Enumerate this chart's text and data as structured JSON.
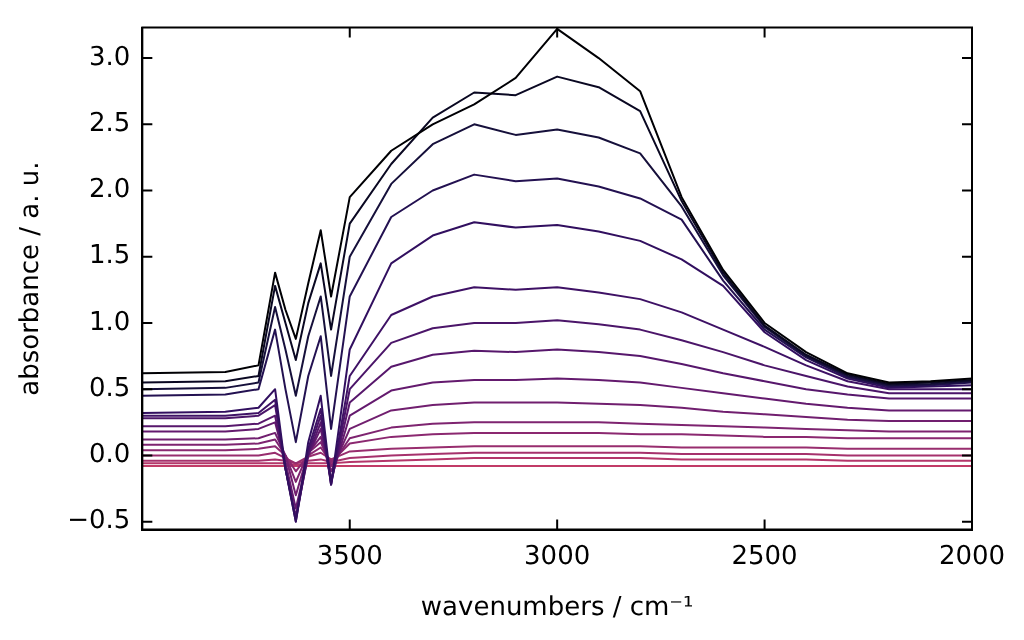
{
  "chart_data": {
    "type": "line",
    "xlabel": "wavenumbers / cm⁻¹",
    "ylabel": "absorbance / a. u.",
    "x": [
      4000,
      3800,
      3720,
      3680,
      3655,
      3630,
      3600,
      3570,
      3545,
      3500,
      3400,
      3300,
      3200,
      3100,
      3000,
      2900,
      2800,
      2700,
      2600,
      2500,
      2400,
      2300,
      2200,
      2100,
      2000
    ],
    "xlim": [
      4000,
      2000
    ],
    "xticks": [
      3500,
      3000,
      2500,
      2000
    ],
    "ylim": [
      -0.56,
      3.23
    ],
    "yticks": [
      {
        "value": -0.5,
        "label": "−0.5"
      },
      {
        "value": 0,
        "label": "0.0"
      },
      0.5,
      {
        "value": 1,
        "label": "1.0"
      },
      1.5,
      {
        "value": 2,
        "label": "2.0"
      },
      2.5,
      {
        "value": 3,
        "label": "3.0"
      }
    ],
    "grid": false,
    "legend": false,
    "marker": "none",
    "line_style": "solid",
    "series": [
      {
        "color": "#000004",
        "values": [
          0.62,
          0.63,
          0.68,
          1.38,
          1.1,
          0.88,
          1.3,
          1.7,
          1.2,
          1.95,
          2.3,
          2.5,
          2.65,
          2.85,
          3.22,
          3.0,
          2.75,
          1.95,
          1.4,
          1.0,
          0.78,
          0.62,
          0.55,
          0.56,
          0.58
        ]
      },
      {
        "color": "#0a0822",
        "values": [
          0.55,
          0.56,
          0.6,
          1.28,
          1.0,
          0.72,
          1.15,
          1.45,
          0.95,
          1.75,
          2.2,
          2.55,
          2.74,
          2.72,
          2.86,
          2.78,
          2.6,
          1.92,
          1.38,
          0.98,
          0.76,
          0.61,
          0.54,
          0.55,
          0.57
        ]
      },
      {
        "color": "#16103b",
        "values": [
          0.5,
          0.51,
          0.55,
          1.12,
          0.8,
          0.45,
          0.9,
          1.2,
          0.6,
          1.5,
          2.05,
          2.35,
          2.5,
          2.42,
          2.46,
          2.4,
          2.28,
          1.88,
          1.36,
          0.97,
          0.75,
          0.6,
          0.53,
          0.54,
          0.56
        ]
      },
      {
        "color": "#231151",
        "values": [
          0.45,
          0.46,
          0.5,
          0.95,
          0.5,
          0.1,
          0.6,
          0.9,
          0.2,
          1.2,
          1.8,
          2.0,
          2.12,
          2.07,
          2.09,
          2.03,
          1.94,
          1.78,
          1.32,
          0.95,
          0.74,
          0.59,
          0.52,
          0.53,
          0.55
        ]
      },
      {
        "color": "#310f5f",
        "values": [
          0.32,
          0.33,
          0.36,
          0.5,
          -0.1,
          -0.5,
          0.1,
          0.45,
          -0.22,
          0.8,
          1.45,
          1.66,
          1.76,
          1.72,
          1.74,
          1.69,
          1.62,
          1.48,
          1.28,
          0.93,
          0.72,
          0.58,
          0.51,
          0.52,
          0.53
        ]
      },
      {
        "color": "#3e1165",
        "values": [
          0.3,
          0.3,
          0.32,
          0.42,
          -0.1,
          -0.5,
          0.05,
          0.35,
          -0.22,
          0.6,
          1.06,
          1.2,
          1.27,
          1.25,
          1.27,
          1.23,
          1.18,
          1.08,
          0.95,
          0.82,
          0.68,
          0.56,
          0.5,
          0.5,
          0.5
        ]
      },
      {
        "color": "#4b1569",
        "values": [
          0.28,
          0.28,
          0.3,
          0.38,
          -0.1,
          -0.48,
          0.02,
          0.3,
          -0.22,
          0.5,
          0.85,
          0.96,
          1.0,
          1.0,
          1.02,
          0.99,
          0.95,
          0.87,
          0.78,
          0.68,
          0.6,
          0.52,
          0.47,
          0.47,
          0.47
        ]
      },
      {
        "color": "#57176c",
        "values": [
          0.22,
          0.22,
          0.24,
          0.3,
          -0.1,
          -0.46,
          0.0,
          0.25,
          -0.2,
          0.4,
          0.67,
          0.76,
          0.79,
          0.78,
          0.8,
          0.78,
          0.75,
          0.69,
          0.62,
          0.56,
          0.5,
          0.46,
          0.43,
          0.43,
          0.43
        ]
      },
      {
        "color": "#641a6e",
        "values": [
          0.18,
          0.18,
          0.2,
          0.25,
          -0.05,
          -0.4,
          0.0,
          0.2,
          -0.18,
          0.3,
          0.49,
          0.55,
          0.57,
          0.57,
          0.58,
          0.57,
          0.55,
          0.51,
          0.47,
          0.43,
          0.39,
          0.36,
          0.34,
          0.34,
          0.34
        ]
      },
      {
        "color": "#711f6f",
        "values": [
          0.12,
          0.12,
          0.13,
          0.17,
          0.0,
          -0.3,
          0.02,
          0.14,
          -0.12,
          0.2,
          0.34,
          0.38,
          0.4,
          0.4,
          0.4,
          0.39,
          0.38,
          0.36,
          0.33,
          0.31,
          0.29,
          0.27,
          0.26,
          0.26,
          0.26
        ]
      },
      {
        "color": "#7e2470",
        "values": [
          0.08,
          0.08,
          0.09,
          0.12,
          0.0,
          -0.2,
          0.02,
          0.1,
          -0.08,
          0.13,
          0.21,
          0.24,
          0.25,
          0.25,
          0.25,
          0.25,
          0.24,
          0.23,
          0.22,
          0.21,
          0.2,
          0.19,
          0.18,
          0.18,
          0.18
        ]
      },
      {
        "color": "#8b2870",
        "values": [
          0.04,
          0.04,
          0.05,
          0.07,
          0.0,
          -0.12,
          0.0,
          0.06,
          -0.05,
          0.09,
          0.14,
          0.16,
          0.17,
          0.17,
          0.17,
          0.17,
          0.16,
          0.16,
          0.15,
          0.14,
          0.14,
          0.13,
          0.13,
          0.13,
          0.13
        ]
      },
      {
        "color": "#982d6e",
        "values": [
          0.0,
          0.0,
          0.0,
          0.02,
          -0.02,
          -0.06,
          -0.01,
          0.02,
          -0.03,
          0.03,
          0.05,
          0.06,
          0.07,
          0.07,
          0.07,
          0.07,
          0.07,
          0.06,
          0.06,
          0.06,
          0.06,
          0.05,
          0.05,
          0.05,
          0.05
        ]
      },
      {
        "color": "#a6316c",
        "values": [
          -0.04,
          -0.04,
          -0.04,
          -0.03,
          -0.04,
          -0.06,
          -0.04,
          -0.03,
          -0.05,
          -0.02,
          0.0,
          0.01,
          0.02,
          0.02,
          0.02,
          0.02,
          0.02,
          0.01,
          0.01,
          0.01,
          0.01,
          0.0,
          0.0,
          0.0,
          0.0
        ]
      },
      {
        "color": "#b4366a",
        "values": [
          -0.06,
          -0.06,
          -0.06,
          -0.06,
          -0.06,
          -0.07,
          -0.06,
          -0.06,
          -0.06,
          -0.05,
          -0.04,
          -0.03,
          -0.02,
          -0.02,
          -0.02,
          -0.02,
          -0.02,
          -0.03,
          -0.03,
          -0.03,
          -0.03,
          -0.04,
          -0.04,
          -0.04,
          -0.04
        ]
      },
      {
        "color": "#c23b67",
        "values": [
          -0.08,
          -0.08,
          -0.08,
          -0.08,
          -0.08,
          -0.08,
          -0.08,
          -0.08,
          -0.08,
          -0.08,
          -0.08,
          -0.08,
          -0.08,
          -0.08,
          -0.08,
          -0.08,
          -0.08,
          -0.08,
          -0.08,
          -0.08,
          -0.08,
          -0.08,
          -0.08,
          -0.08,
          -0.08
        ]
      }
    ]
  }
}
